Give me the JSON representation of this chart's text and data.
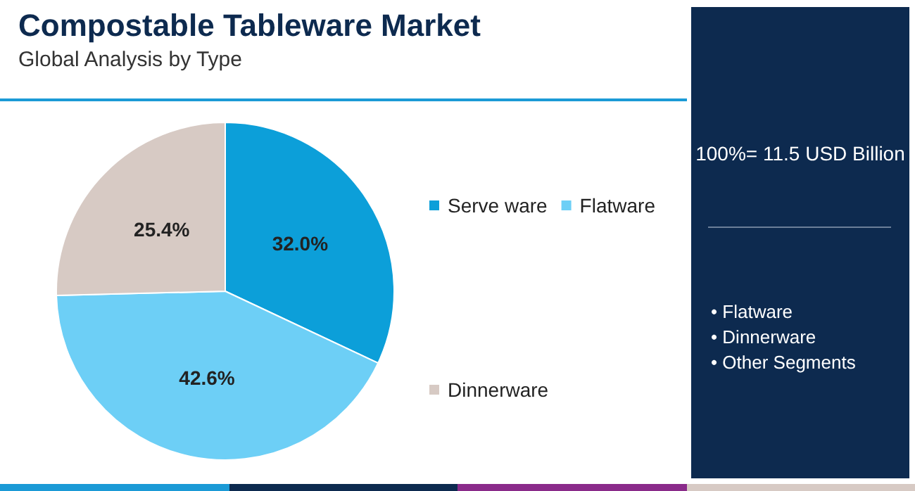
{
  "chart_data": {
    "type": "pie",
    "title": "Compostable Tableware Market",
    "subtitle": "Global Analysis by Type",
    "categories": [
      "Serve ware",
      "Flatware",
      "Dinnerware"
    ],
    "values": [
      32.0,
      42.6,
      25.4
    ],
    "colors": [
      "#0c9fd9",
      "#6dcff6",
      "#d7cac4"
    ],
    "value_labels": [
      "32.0%",
      "42.6%",
      "25.4%"
    ],
    "legend": "right",
    "annotations": [
      "100%= 11.5 USD Billion",
      "• Flatware",
      "• Dinnerware",
      "• Other Segments"
    ]
  }
}
